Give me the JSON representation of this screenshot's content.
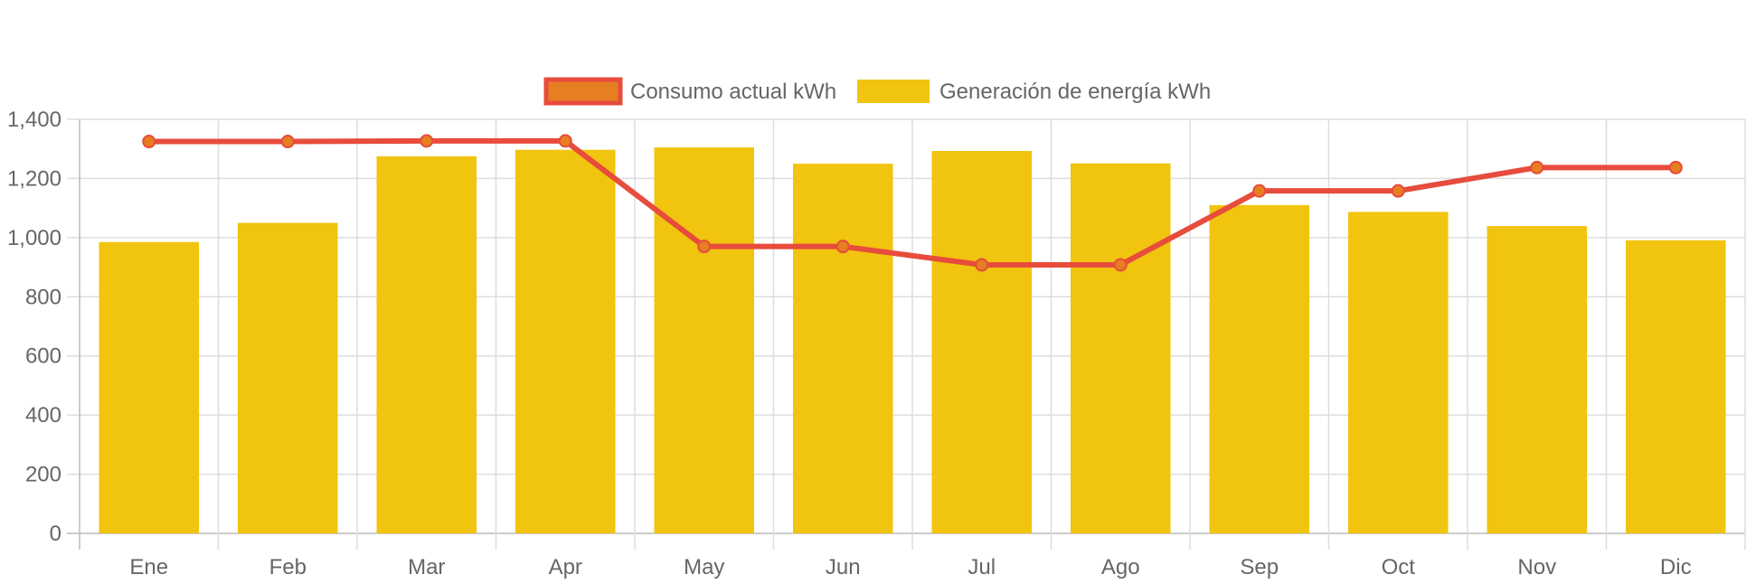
{
  "chart_data": {
    "type": "bar",
    "categories": [
      "Ene",
      "Feb",
      "Mar",
      "Apr",
      "May",
      "Jun",
      "Jul",
      "Ago",
      "Sep",
      "Oct",
      "Nov",
      "Dic"
    ],
    "series": [
      {
        "name": "Consumo actual kWh",
        "type": "line",
        "values": [
          1325,
          1325,
          1327,
          1327,
          970,
          970,
          908,
          908,
          1158,
          1158,
          1237,
          1237
        ],
        "color": "#e74c3c",
        "point_color": "#e67e22"
      },
      {
        "name": "Generación de energía kWh",
        "type": "bar",
        "values": [
          985,
          1050,
          1275,
          1297,
          1305,
          1250,
          1293,
          1251,
          1110,
          1087,
          1039,
          991
        ],
        "color": "#f1c40f"
      }
    ],
    "y_ticks": [
      "0",
      "200",
      "400",
      "600",
      "800",
      "1,000",
      "1,200",
      "1,400"
    ],
    "ylim": [
      0,
      1400
    ],
    "grid": true,
    "legend": "top-center",
    "title": "",
    "xlabel": "",
    "ylabel": ""
  }
}
